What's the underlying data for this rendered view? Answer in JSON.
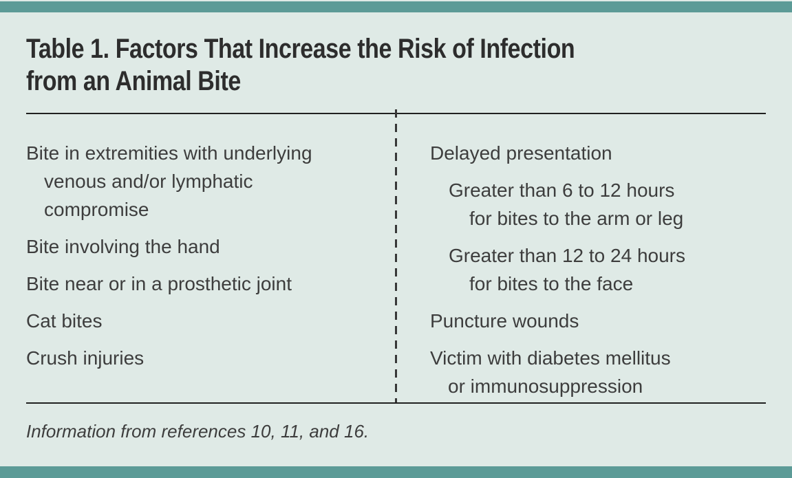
{
  "page": {
    "background_color": "#dfeae6",
    "accent_bar_color": "#5c9b97",
    "rule_color": "#202020",
    "text_color": "#3d3d3d",
    "title_color": "#2d2d2d"
  },
  "table": {
    "title_lines": [
      "Table 1. Factors That Increase the Risk of Infection",
      "from an Animal Bite"
    ],
    "left_column_items": [
      {
        "lines": [
          "Bite in extremities with underlying",
          "venous and/or lymphatic",
          "compromise"
        ]
      },
      {
        "lines": [
          "Bite involving the hand"
        ]
      },
      {
        "lines": [
          "Bite near or in a prosthetic joint"
        ]
      },
      {
        "lines": [
          "Cat bites"
        ]
      },
      {
        "lines": [
          "Crush injuries"
        ]
      }
    ],
    "right_column_items": [
      {
        "indent": 0,
        "lines": [
          "Delayed presentation"
        ]
      },
      {
        "indent": 1,
        "lines": [
          "Greater than 6 to 12 hours",
          "for bites to the arm or leg"
        ]
      },
      {
        "indent": 1,
        "lines": [
          "Greater than 12 to 24 hours",
          "for bites to the face"
        ]
      },
      {
        "indent": 0,
        "lines": [
          "Puncture wounds"
        ]
      },
      {
        "indent": 0,
        "lines": [
          "Victim with diabetes mellitus",
          "or immunosuppression"
        ]
      }
    ],
    "footnote": "Information from references 10, 11, and 16."
  }
}
